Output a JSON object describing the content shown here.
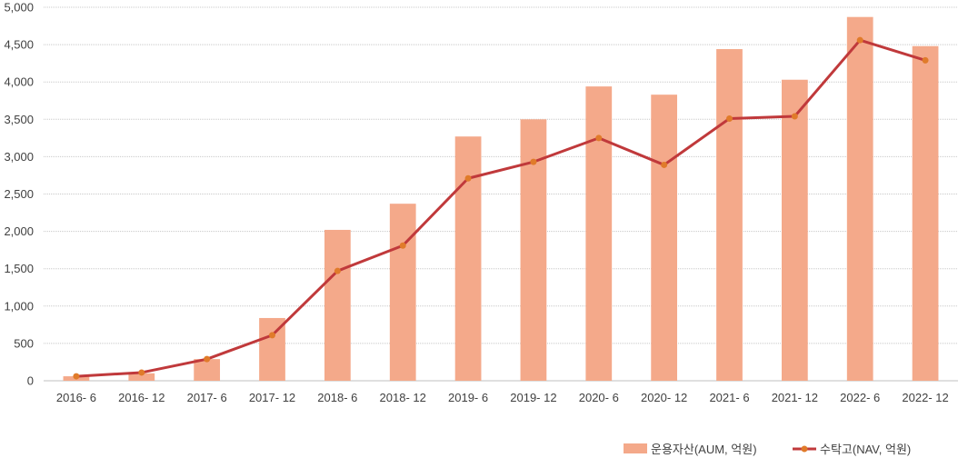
{
  "chart_data": {
    "type": "bar+line",
    "categories": [
      "2016- 6",
      "2016- 12",
      "2017- 6",
      "2017- 12",
      "2018- 6",
      "2018- 12",
      "2019- 6",
      "2019- 12",
      "2020- 6",
      "2020- 12",
      "2021- 6",
      "2021- 12",
      "2022- 6",
      "2022- 12"
    ],
    "series": [
      {
        "name": "운용자산(AUM, 억원)",
        "kind": "bar",
        "color": "#f4a98a",
        "values": [
          60,
          100,
          290,
          840,
          2020,
          2370,
          3270,
          3500,
          3940,
          3830,
          4440,
          4030,
          4870,
          4480
        ]
      },
      {
        "name": "수탁고(NAV, 억원)",
        "kind": "line",
        "color": "#c0393b",
        "marker_color": "#e07b2a",
        "values": [
          60,
          110,
          290,
          610,
          1470,
          1810,
          2710,
          2930,
          3250,
          2890,
          3510,
          3540,
          4560,
          4290
        ]
      }
    ],
    "yticks": [
      "0",
      "500",
      "1,000",
      "1,500",
      "2,000",
      "2,500",
      "3,000",
      "3,500",
      "4,000",
      "4,500",
      "5,000"
    ],
    "ylim": [
      0,
      5000
    ],
    "grid": true,
    "legend_position": "bottom-right"
  }
}
